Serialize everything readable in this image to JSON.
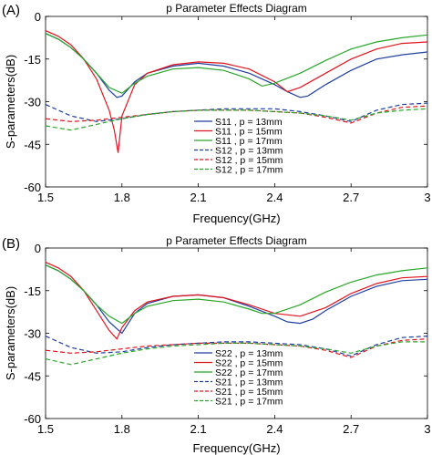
{
  "chart_data": [
    {
      "panel_label": "(A)",
      "type": "line",
      "title": "p Parameter Effects Diagram",
      "xlabel": "Frequency(GHz)",
      "ylabel": "S-parameters(dB)",
      "xlim": [
        1.5,
        3.0
      ],
      "ylim": [
        -60,
        0
      ],
      "xticks": [
        "1.5",
        "1.8",
        "2.1",
        "2.4",
        "2.7",
        "3"
      ],
      "yticks": [
        "0",
        "-15",
        "-30",
        "-45",
        "-60"
      ],
      "grid": false,
      "legend_position": "center",
      "series": [
        {
          "name": "S11 , p = 13mm",
          "color": "#1f3f9f",
          "dash": "solid",
          "x": [
            1.5,
            1.55,
            1.6,
            1.65,
            1.7,
            1.75,
            1.78,
            1.8,
            1.85,
            1.9,
            2.0,
            2.1,
            2.2,
            2.3,
            2.4,
            2.45,
            2.5,
            2.53,
            2.6,
            2.7,
            2.8,
            2.9,
            3.0
          ],
          "y": [
            -6,
            -8,
            -11,
            -15,
            -20,
            -26,
            -28.5,
            -28,
            -23,
            -20,
            -17.5,
            -16.5,
            -17.5,
            -20,
            -24,
            -26.5,
            -28.5,
            -28,
            -24,
            -19,
            -15,
            -13.5,
            -12.5
          ]
        },
        {
          "name": "S11 , p = 15mm",
          "color": "#e0141e",
          "dash": "solid",
          "x": [
            1.5,
            1.55,
            1.6,
            1.65,
            1.7,
            1.75,
            1.77,
            1.785,
            1.8,
            1.85,
            1.9,
            2.0,
            2.1,
            2.2,
            2.3,
            2.4,
            2.45,
            2.5,
            2.6,
            2.7,
            2.8,
            2.9,
            3.0
          ],
          "y": [
            -5,
            -7,
            -10,
            -15,
            -22,
            -33,
            -40,
            -48,
            -35,
            -24,
            -20,
            -17,
            -16,
            -16.5,
            -18.5,
            -23,
            -26.5,
            -25,
            -20,
            -15,
            -11.5,
            -9.5,
            -9
          ]
        },
        {
          "name": "S11 , p = 17mm",
          "color": "#2aa52a",
          "dash": "solid",
          "x": [
            1.5,
            1.55,
            1.6,
            1.65,
            1.7,
            1.75,
            1.8,
            1.85,
            1.9,
            2.0,
            2.1,
            2.2,
            2.3,
            2.35,
            2.4,
            2.5,
            2.6,
            2.7,
            2.8,
            2.9,
            3.0
          ],
          "y": [
            -6,
            -8,
            -11,
            -15,
            -20,
            -25,
            -27,
            -23.5,
            -21,
            -18.5,
            -18,
            -19,
            -22,
            -24.5,
            -23.5,
            -20,
            -15.5,
            -11.5,
            -9,
            -7.5,
            -6.5
          ]
        },
        {
          "name": "S12 , p = 13mm",
          "color": "#1f3f9f",
          "dash": "dashed",
          "x": [
            1.5,
            1.6,
            1.7,
            1.8,
            1.9,
            2.0,
            2.1,
            2.2,
            2.3,
            2.4,
            2.5,
            2.6,
            2.7,
            2.8,
            2.9,
            3.0
          ],
          "y": [
            -31,
            -35,
            -37,
            -36,
            -34.5,
            -33.5,
            -33,
            -32.5,
            -32.5,
            -32.5,
            -33.5,
            -35,
            -37,
            -33,
            -31,
            -30.5
          ]
        },
        {
          "name": "S12 , p = 15mm",
          "color": "#e0141e",
          "dash": "dashed",
          "x": [
            1.5,
            1.6,
            1.7,
            1.8,
            1.9,
            2.0,
            2.1,
            2.2,
            2.3,
            2.4,
            2.5,
            2.6,
            2.7,
            2.8,
            2.9,
            3.0
          ],
          "y": [
            -36,
            -37,
            -36.5,
            -35.5,
            -34.5,
            -33.5,
            -33,
            -33,
            -33,
            -33.5,
            -34,
            -35.5,
            -37.5,
            -34,
            -32,
            -31.5
          ]
        },
        {
          "name": "S12 , p = 17mm",
          "color": "#2aa52a",
          "dash": "dashed",
          "x": [
            1.5,
            1.6,
            1.7,
            1.8,
            1.9,
            2.0,
            2.1,
            2.2,
            2.3,
            2.4,
            2.5,
            2.6,
            2.7,
            2.8,
            2.9,
            3.0
          ],
          "y": [
            -38.5,
            -40,
            -38,
            -36,
            -34.5,
            -33.5,
            -33,
            -33,
            -33,
            -33.5,
            -34,
            -35,
            -36.5,
            -34,
            -33,
            -32.5
          ]
        }
      ]
    },
    {
      "panel_label": "(B)",
      "type": "line",
      "title": "p Parameter Effects Diagram",
      "xlabel": "Frequency(GHz)",
      "ylabel": "S-parameters(dB)",
      "xlim": [
        1.5,
        3.0
      ],
      "ylim": [
        -60,
        0
      ],
      "xticks": [
        "1.5",
        "1.8",
        "2.1",
        "2.4",
        "2.7",
        "3"
      ],
      "yticks": [
        "0",
        "-15",
        "-30",
        "-45",
        "-60"
      ],
      "grid": false,
      "legend_position": "center",
      "series": [
        {
          "name": "S22 , p = 13mm",
          "color": "#1f3f9f",
          "dash": "solid",
          "x": [
            1.5,
            1.55,
            1.6,
            1.65,
            1.7,
            1.75,
            1.8,
            1.85,
            1.9,
            2.0,
            2.1,
            2.2,
            2.3,
            2.4,
            2.45,
            2.5,
            2.55,
            2.6,
            2.7,
            2.8,
            2.9,
            3.0
          ],
          "y": [
            -6,
            -8,
            -11,
            -15,
            -20,
            -26,
            -30,
            -23,
            -19.5,
            -17,
            -16.5,
            -17.5,
            -20.5,
            -24,
            -26,
            -26.5,
            -25,
            -22,
            -17,
            -13.5,
            -11.5,
            -11
          ]
        },
        {
          "name": "S22 , p = 15mm",
          "color": "#e0141e",
          "dash": "solid",
          "x": [
            1.5,
            1.55,
            1.6,
            1.65,
            1.7,
            1.75,
            1.78,
            1.8,
            1.85,
            1.9,
            2.0,
            2.1,
            2.2,
            2.3,
            2.4,
            2.5,
            2.6,
            2.7,
            2.8,
            2.9,
            3.0
          ],
          "y": [
            -5,
            -7,
            -10,
            -15,
            -22,
            -29,
            -32,
            -28,
            -22,
            -19,
            -17,
            -16.5,
            -17.5,
            -20,
            -23,
            -24,
            -21,
            -16,
            -12.5,
            -10.5,
            -10
          ]
        },
        {
          "name": "S22 , p = 17mm",
          "color": "#2aa52a",
          "dash": "solid",
          "x": [
            1.5,
            1.55,
            1.6,
            1.65,
            1.7,
            1.75,
            1.8,
            1.85,
            1.9,
            2.0,
            2.1,
            2.2,
            2.3,
            2.35,
            2.4,
            2.5,
            2.6,
            2.7,
            2.8,
            2.9,
            3.0
          ],
          "y": [
            -6,
            -8,
            -11,
            -15,
            -20,
            -24,
            -26.5,
            -23,
            -20.5,
            -18.5,
            -18,
            -19,
            -21.5,
            -23,
            -23,
            -20,
            -15.5,
            -12,
            -9.5,
            -8,
            -7
          ]
        },
        {
          "name": "S21 , p = 13mm",
          "color": "#1f3f9f",
          "dash": "dashed",
          "x": [
            1.5,
            1.6,
            1.7,
            1.8,
            1.9,
            2.0,
            2.1,
            2.2,
            2.3,
            2.4,
            2.5,
            2.6,
            2.7,
            2.8,
            2.9,
            3.0
          ],
          "y": [
            -31,
            -35,
            -37,
            -36.5,
            -35,
            -34,
            -33.5,
            -33,
            -33,
            -33.5,
            -34,
            -35.5,
            -38,
            -34,
            -31.5,
            -31
          ]
        },
        {
          "name": "S21 , p = 15mm",
          "color": "#e0141e",
          "dash": "dashed",
          "x": [
            1.5,
            1.6,
            1.7,
            1.8,
            1.9,
            2.0,
            2.1,
            2.2,
            2.3,
            2.4,
            2.5,
            2.6,
            2.7,
            2.8,
            2.9,
            3.0
          ],
          "y": [
            -36,
            -37,
            -36.5,
            -35.5,
            -34.5,
            -34,
            -33.5,
            -33.5,
            -33.5,
            -34,
            -34.5,
            -36,
            -38.5,
            -34.5,
            -32.5,
            -32
          ]
        },
        {
          "name": "S21 , p = 17mm",
          "color": "#2aa52a",
          "dash": "dashed",
          "x": [
            1.5,
            1.6,
            1.7,
            1.8,
            1.9,
            2.0,
            2.1,
            2.2,
            2.3,
            2.4,
            2.5,
            2.6,
            2.7,
            2.8,
            2.9,
            3.0
          ],
          "y": [
            -39,
            -41,
            -39,
            -37,
            -35.5,
            -34.5,
            -34,
            -33.5,
            -33.5,
            -34,
            -34.5,
            -35.5,
            -37,
            -34.5,
            -33,
            -33
          ]
        }
      ]
    }
  ]
}
